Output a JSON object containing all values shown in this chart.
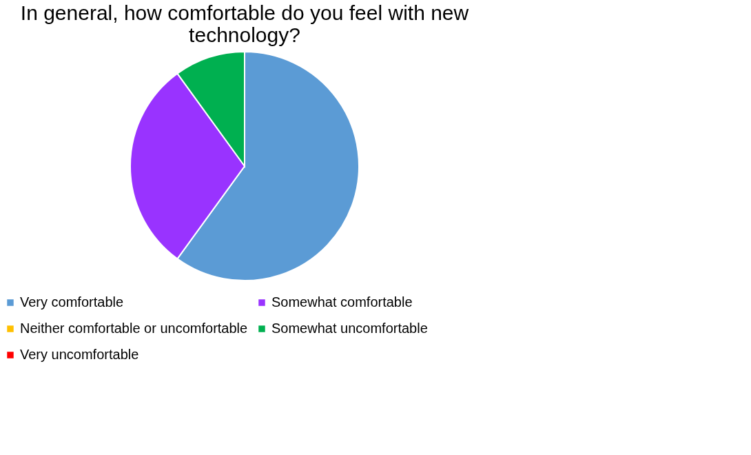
{
  "chart_data": {
    "type": "pie",
    "title": "In general, how comfortable do you feel with new technology?",
    "categories": [
      "Very comfortable",
      "Somewhat comfortable",
      "Neither comfortable or uncomfortable",
      "Somewhat uncomfortable",
      "Very uncomfortable"
    ],
    "values": [
      60,
      30,
      0,
      10,
      0
    ],
    "colors": [
      "#5b9bd5",
      "#9933ff",
      "#ffc000",
      "#00b050",
      "#ff0000"
    ],
    "legend": "bottom"
  }
}
